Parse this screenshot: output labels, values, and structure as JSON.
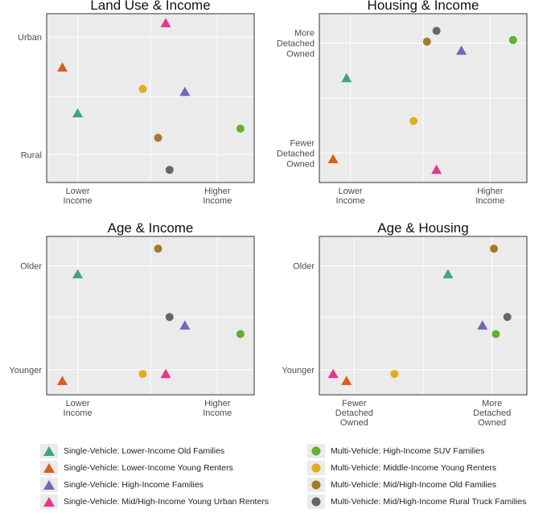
{
  "colors": {
    "panel_bg": "#ebebeb",
    "grid": "#ffffff",
    "border": "#333333",
    "text": "#4d4d4d",
    "title": "#111111"
  },
  "series": [
    {
      "key": "s1",
      "name": "Single-Vehicle: Lower-Income Old Families",
      "shape": "triangle",
      "color": "#3fa67a"
    },
    {
      "key": "s2",
      "name": "Single-Vehicle: Lower-Income Young Renters",
      "shape": "triangle",
      "color": "#d95f1c"
    },
    {
      "key": "s3",
      "name": "Single-Vehicle: High-Income Families",
      "shape": "triangle",
      "color": "#7467b5"
    },
    {
      "key": "s4",
      "name": "Single-Vehicle: Mid/High-Income Young Urban Renters",
      "shape": "triangle",
      "color": "#e4368c"
    },
    {
      "key": "m1",
      "name": "Multi-Vehicle: High-Income SUV Families",
      "shape": "circle",
      "color": "#62b02e"
    },
    {
      "key": "m2",
      "name": "Multi-Vehicle: Middle-Income Young Renters",
      "shape": "circle",
      "color": "#e3ab22"
    },
    {
      "key": "m3",
      "name": "Multi-Vehicle: Mid/High-Income Old Families",
      "shape": "circle",
      "color": "#a57a27"
    },
    {
      "key": "m4",
      "name": "Multi-Vehicle: Mid/High-Income Rural Truck Families",
      "shape": "circle",
      "color": "#666666"
    }
  ],
  "chart_data": [
    {
      "type": "scatter",
      "title": "Land Use & Income",
      "xlim": [
        0,
        1
      ],
      "ylim": [
        0,
        1
      ],
      "x_ticks": [
        {
          "value": 0.12,
          "label": [
            "Lower",
            "Income"
          ]
        },
        {
          "value": 0.85,
          "label": [
            "Higher",
            "Income"
          ]
        }
      ],
      "y_ticks": [
        {
          "value": 0.9,
          "label": [
            "Urban"
          ]
        },
        {
          "value": 0.13,
          "label": [
            "Rural"
          ]
        }
      ],
      "grid_x": [
        0.12,
        0.5,
        0.85
      ],
      "grid_y": [
        0.13,
        0.51,
        0.9
      ],
      "points": {
        "s1": [
          0.12,
          0.4
        ],
        "s2": [
          0.04,
          0.7
        ],
        "s3": [
          0.68,
          0.54
        ],
        "s4": [
          0.58,
          0.99
        ],
        "m1": [
          0.97,
          0.3
        ],
        "m2": [
          0.46,
          0.56
        ],
        "m3": [
          0.54,
          0.24
        ],
        "m4": [
          0.6,
          0.03
        ]
      }
    },
    {
      "type": "scatter",
      "title": "Housing & Income",
      "xlim": [
        0,
        1
      ],
      "ylim": [
        0,
        1
      ],
      "x_ticks": [
        {
          "value": 0.12,
          "label": [
            "Lower",
            "Income"
          ]
        },
        {
          "value": 0.85,
          "label": [
            "Higher",
            "Income"
          ]
        }
      ],
      "y_ticks": [
        {
          "value": 0.86,
          "label": [
            "More",
            "Detached",
            "Owned"
          ]
        },
        {
          "value": 0.14,
          "label": [
            "Fewer",
            "Detached",
            "Owned"
          ]
        }
      ],
      "grid_x": [
        0.12,
        0.5,
        0.85
      ],
      "grid_y": [
        0.14,
        0.5,
        0.86
      ],
      "points": {
        "s1": [
          0.1,
          0.63
        ],
        "s2": [
          0.03,
          0.1
        ],
        "s3": [
          0.7,
          0.81
        ],
        "s4": [
          0.57,
          0.03
        ],
        "m1": [
          0.97,
          0.88
        ],
        "m2": [
          0.45,
          0.35
        ],
        "m3": [
          0.52,
          0.87
        ],
        "m4": [
          0.57,
          0.94
        ]
      }
    },
    {
      "type": "scatter",
      "title": "Age & Income",
      "xlim": [
        0,
        1
      ],
      "ylim": [
        0,
        1
      ],
      "x_ticks": [
        {
          "value": 0.12,
          "label": [
            "Lower",
            "Income"
          ]
        },
        {
          "value": 0.85,
          "label": [
            "Higher",
            "Income"
          ]
        }
      ],
      "y_ticks": [
        {
          "value": 0.85,
          "label": [
            "Older"
          ]
        },
        {
          "value": 0.12,
          "label": [
            "Younger"
          ]
        }
      ],
      "grid_x": [
        0.12,
        0.5,
        0.85
      ],
      "grid_y": [
        0.12,
        0.49,
        0.85
      ],
      "points": {
        "s1": [
          0.12,
          0.79
        ],
        "s2": [
          0.04,
          0.04
        ],
        "s3": [
          0.68,
          0.43
        ],
        "s4": [
          0.58,
          0.09
        ],
        "m1": [
          0.97,
          0.37
        ],
        "m2": [
          0.46,
          0.09
        ],
        "m3": [
          0.54,
          0.97
        ],
        "m4": [
          0.6,
          0.49
        ]
      }
    },
    {
      "type": "scatter",
      "title": "Age & Housing",
      "xlim": [
        0,
        1
      ],
      "ylim": [
        0,
        1
      ],
      "x_ticks": [
        {
          "value": 0.14,
          "label": [
            "Fewer",
            "Detached",
            "Owned"
          ]
        },
        {
          "value": 0.86,
          "label": [
            "More",
            "Detached",
            "Owned"
          ]
        }
      ],
      "y_ticks": [
        {
          "value": 0.85,
          "label": [
            "Older"
          ]
        },
        {
          "value": 0.12,
          "label": [
            "Younger"
          ]
        }
      ],
      "grid_x": [
        0.14,
        0.5,
        0.86
      ],
      "grid_y": [
        0.12,
        0.49,
        0.85
      ],
      "points": {
        "s1": [
          0.63,
          0.79
        ],
        "s2": [
          0.1,
          0.04
        ],
        "s3": [
          0.81,
          0.43
        ],
        "s4": [
          0.03,
          0.09
        ],
        "m1": [
          0.88,
          0.37
        ],
        "m2": [
          0.35,
          0.09
        ],
        "m3": [
          0.87,
          0.97
        ],
        "m4": [
          0.94,
          0.49
        ]
      }
    }
  ]
}
